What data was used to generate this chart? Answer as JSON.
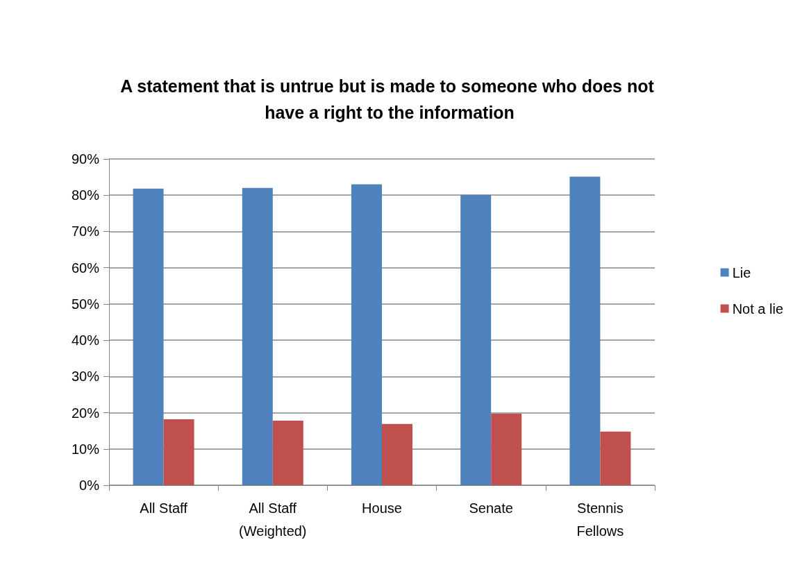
{
  "chart_data": {
    "type": "bar",
    "title": "A statement that is untrue but is made to someone who does not have a right to the information",
    "categories": [
      "All Staff",
      "All Staff\n(Weighted)",
      "House",
      "Senate",
      "Stennis\nFellows"
    ],
    "series": [
      {
        "name": "Lie",
        "color": "#4f81bd",
        "values": [
          81.8,
          82.0,
          83.0,
          80.1,
          85.1
        ]
      },
      {
        "name": "Not a lie",
        "color": "#c0504d",
        "values": [
          18.2,
          17.8,
          16.9,
          19.7,
          14.8
        ]
      }
    ],
    "ylim": [
      0,
      90
    ],
    "yticks": [
      {
        "value": 0,
        "label": "0%"
      },
      {
        "value": 10,
        "label": "10%"
      },
      {
        "value": 20,
        "label": "20%"
      },
      {
        "value": 30,
        "label": "30%"
      },
      {
        "value": 40,
        "label": "40%"
      },
      {
        "value": 50,
        "label": "50%"
      },
      {
        "value": 60,
        "label": "60%"
      },
      {
        "value": 70,
        "label": "70%"
      },
      {
        "value": 80,
        "label": "80%"
      },
      {
        "value": 90,
        "label": "90%"
      }
    ],
    "grid": "y",
    "legend": "right"
  }
}
